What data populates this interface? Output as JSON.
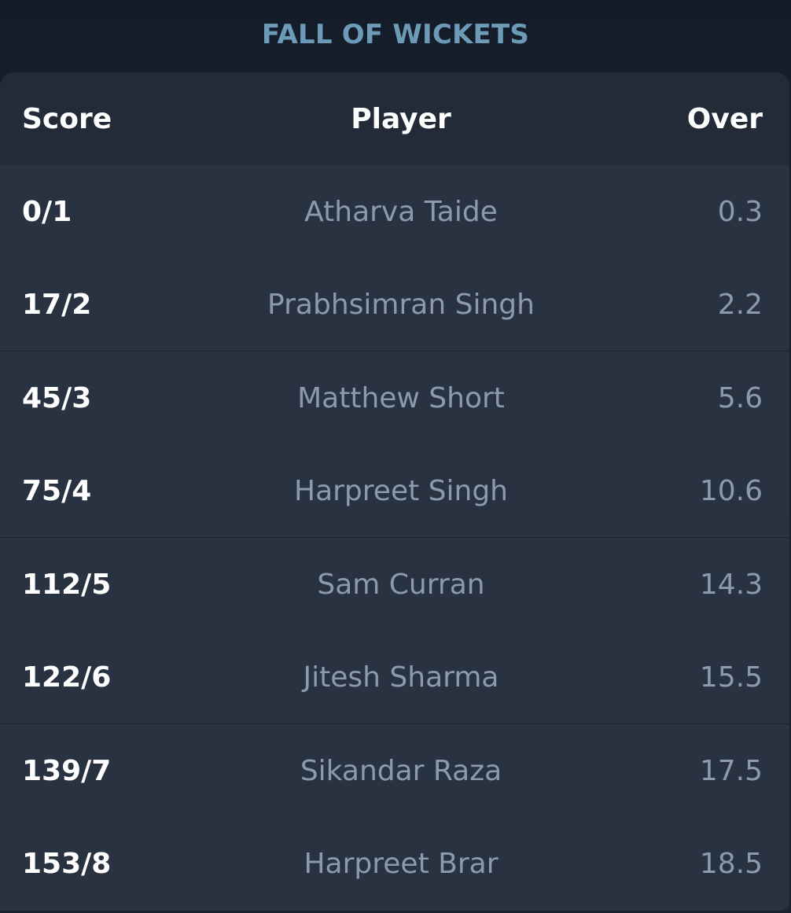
{
  "title": "FALL OF WICKETS",
  "headers": {
    "score": "Score",
    "player": "Player",
    "over": "Over"
  },
  "rows": [
    {
      "score": "0/1",
      "player": "Atharva Taide",
      "over": "0.3"
    },
    {
      "score": "17/2",
      "player": "Prabhsimran Singh",
      "over": "2.2"
    },
    {
      "score": "45/3",
      "player": "Matthew Short",
      "over": "5.6"
    },
    {
      "score": "75/4",
      "player": "Harpreet Singh",
      "over": "10.6"
    },
    {
      "score": "112/5",
      "player": "Sam Curran",
      "over": "14.3"
    },
    {
      "score": "122/6",
      "player": "Jitesh Sharma",
      "over": "15.5"
    },
    {
      "score": "139/7",
      "player": "Sikandar Raza",
      "over": "17.5"
    },
    {
      "score": "153/8",
      "player": "Harpreet Brar",
      "over": "18.5"
    }
  ],
  "colors": {
    "title": "#6d9bb7",
    "card": "#293241",
    "header_row": "#232b38",
    "primary_text": "#ffffff",
    "muted_text": "#8c9ab0"
  }
}
